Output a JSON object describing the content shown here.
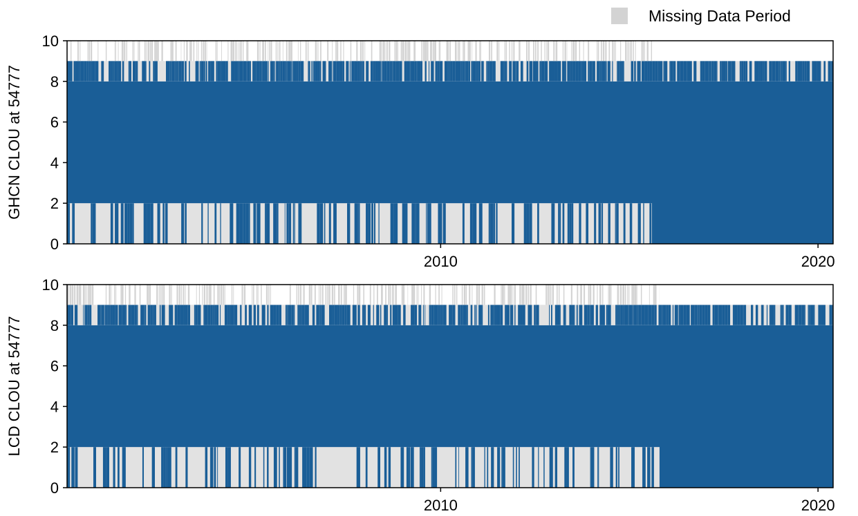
{
  "legend": {
    "label": "Missing Data Period",
    "color": "#d3d3d3"
  },
  "colors": {
    "data": "#1a5e97",
    "missing": "#d3d3d3",
    "axis": "#000000"
  },
  "chart_data": [
    {
      "type": "bar",
      "ylabel": "GHCN CLOU at 54777",
      "xlabel": "",
      "xlim": [
        2000.1,
        2020.4
      ],
      "ylim": [
        0,
        10
      ],
      "yticks": [
        0,
        2,
        4,
        6,
        8,
        10
      ],
      "xticks": [
        2010,
        2020
      ],
      "series": [
        {
          "bands": [
            {
              "x": [
                2000.1,
                2020.4
              ],
              "y0": 0,
              "y1": 8,
              "kind": "data"
            },
            {
              "x": [
                2000.1,
                2015.6
              ],
              "y0": 0,
              "y1": 2,
              "kind": "sparse-data",
              "coverage": 0.3
            },
            {
              "x": [
                2000.1,
                2020.4
              ],
              "y0": 8,
              "y1": 9,
              "kind": "sparse-data",
              "coverage": 0.7
            },
            {
              "x": [
                2000.1,
                2015.6
              ],
              "y0": 9,
              "y1": 10,
              "kind": "missing",
              "coverage": 0.5
            }
          ]
        }
      ],
      "legend": "top-right"
    },
    {
      "type": "bar",
      "ylabel": "LCD CLOU at 54777",
      "xlabel": "",
      "xlim": [
        2000.1,
        2020.4
      ],
      "ylim": [
        0,
        10
      ],
      "yticks": [
        0,
        2,
        4,
        6,
        8,
        10
      ],
      "xticks": [
        2010,
        2020
      ],
      "series": [
        {
          "bands": [
            {
              "x": [
                2000.1,
                2020.4
              ],
              "y0": 0,
              "y1": 8,
              "kind": "data"
            },
            {
              "x": [
                2000.1,
                2015.8
              ],
              "y0": 0,
              "y1": 2,
              "kind": "sparse-data",
              "coverage": 0.3
            },
            {
              "x": [
                2000.1,
                2020.4
              ],
              "y0": 8,
              "y1": 9,
              "kind": "sparse-data",
              "coverage": 0.7
            },
            {
              "x": [
                2000.1,
                2015.8
              ],
              "y0": 9,
              "y1": 10,
              "kind": "missing",
              "coverage": 0.5
            }
          ]
        }
      ],
      "legend": "top-right"
    }
  ]
}
